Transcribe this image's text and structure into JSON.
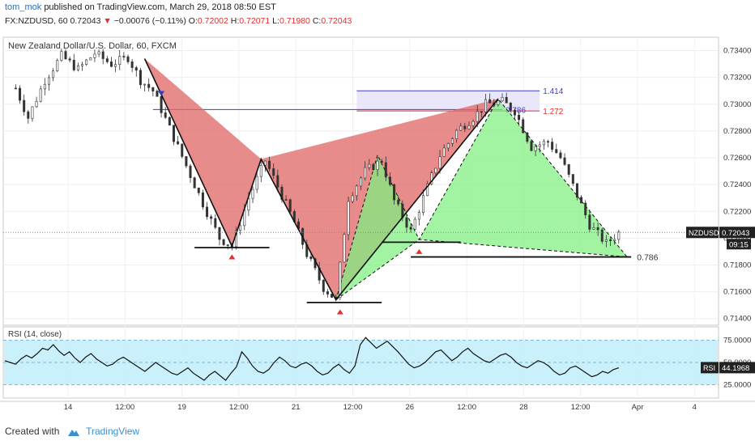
{
  "header": {
    "username": "tom_mok",
    "published": "published on TradingView.com, March 29, 2018 08:50 EST",
    "symbol_line": "FX:NZDUSD, 60",
    "last": "0.72043",
    "change": "−0.00076 (−0.11%)",
    "o_label": "O:",
    "o_val": "0.72002",
    "h_label": "H:",
    "h_val": "0.72071",
    "l_label": "L:",
    "l_val": "0.71980",
    "c_label": "C:",
    "c_val": "0.72043"
  },
  "footer": {
    "created": "Created with",
    "brand": "TradingView"
  },
  "colors": {
    "bear_pattern": "#e06a6a",
    "bull_pattern": "#7ef07e",
    "fib_box": "#e8e4fb",
    "fib_blue": "#3b3bd6",
    "fib_red": "#e03030",
    "rsi_band": "#bdeefa",
    "candle": "#333333"
  },
  "chart_data": [
    {
      "type": "candlestick",
      "title": "New Zealand Dollar/U.S. Dollar, 60, FXCM",
      "symbol_label": "NZDUSD",
      "last_price_label": "0.72043",
      "countdown_label": "09:15",
      "y_ticks": [
        "0.73400",
        "0.73200",
        "0.73000",
        "0.72800",
        "0.72600",
        "0.72400",
        "0.72200",
        "0.72000",
        "0.71800",
        "0.71600",
        "0.71400"
      ],
      "ylim": [
        0.7135,
        0.735
      ],
      "x_ticks": [
        "14",
        "12:00",
        "19",
        "12:00",
        "21",
        "12:00",
        "26",
        "12:00",
        "28",
        "12:00",
        "Apr",
        "4"
      ],
      "close_path": [
        {
          "t": 0,
          "v": 0.7312
        },
        {
          "t": 3,
          "v": 0.729
        },
        {
          "t": 7,
          "v": 0.7318
        },
        {
          "t": 11,
          "v": 0.7336
        },
        {
          "t": 15,
          "v": 0.7326
        },
        {
          "t": 19,
          "v": 0.7338
        },
        {
          "t": 23,
          "v": 0.733
        },
        {
          "t": 27,
          "v": 0.7335
        },
        {
          "t": 30,
          "v": 0.7318
        },
        {
          "t": 33,
          "v": 0.731
        },
        {
          "t": 37,
          "v": 0.7282
        },
        {
          "t": 41,
          "v": 0.7254
        },
        {
          "t": 45,
          "v": 0.7226
        },
        {
          "t": 49,
          "v": 0.72
        },
        {
          "t": 52,
          "v": 0.7194
        },
        {
          "t": 56,
          "v": 0.723
        },
        {
          "t": 60,
          "v": 0.7258
        },
        {
          "t": 64,
          "v": 0.7232
        },
        {
          "t": 67,
          "v": 0.7212
        },
        {
          "t": 70,
          "v": 0.7188
        },
        {
          "t": 74,
          "v": 0.7163
        },
        {
          "t": 77,
          "v": 0.7154
        },
        {
          "t": 80,
          "v": 0.723
        },
        {
          "t": 84,
          "v": 0.725
        },
        {
          "t": 88,
          "v": 0.7258
        },
        {
          "t": 91,
          "v": 0.7228
        },
        {
          "t": 95,
          "v": 0.7205
        },
        {
          "t": 98,
          "v": 0.723
        },
        {
          "t": 102,
          "v": 0.7262
        },
        {
          "t": 106,
          "v": 0.728
        },
        {
          "t": 110,
          "v": 0.729
        },
        {
          "t": 113,
          "v": 0.73
        },
        {
          "t": 117,
          "v": 0.7302
        },
        {
          "t": 120,
          "v": 0.7295
        },
        {
          "t": 124,
          "v": 0.7268
        },
        {
          "t": 128,
          "v": 0.7272
        },
        {
          "t": 131,
          "v": 0.726
        },
        {
          "t": 135,
          "v": 0.7232
        },
        {
          "t": 138,
          "v": 0.721
        },
        {
          "t": 142,
          "v": 0.7196
        },
        {
          "t": 145,
          "v": 0.7204
        }
      ],
      "harmonic_bearish": {
        "X": {
          "t": 31,
          "v": 0.7334
        },
        "A": {
          "t": 52,
          "v": 0.7194
        },
        "B": {
          "t": 59,
          "v": 0.7259
        },
        "C": {
          "t": 77,
          "v": 0.7154
        },
        "D": {
          "t": 116,
          "v": 0.7304
        }
      },
      "harmonic_bullish": {
        "X": {
          "t": 77,
          "v": 0.7154
        },
        "A": {
          "t": 87,
          "v": 0.7262
        },
        "B": {
          "t": 97,
          "v": 0.7199
        },
        "C": {
          "t": 116,
          "v": 0.7304
        },
        "D": {
          "t": 147,
          "v": 0.7186
        }
      },
      "fib_levels": [
        {
          "label": "1.414",
          "value": 0.731,
          "color": "#3b3bd6"
        },
        {
          "label": "0.786",
          "value": 0.7296,
          "color": "#3b3bd6"
        },
        {
          "label": "1.272",
          "value": 0.7295,
          "color": "#e03030"
        }
      ],
      "support_lines": [
        {
          "t0": 43,
          "t1": 61,
          "v": 0.7193
        },
        {
          "t0": 70,
          "t1": 88,
          "v": 0.7152
        },
        {
          "t0": 88,
          "t1": 107,
          "v": 0.7197
        },
        {
          "t0": 95,
          "t1": 148,
          "v": 0.7186,
          "label": "0.786"
        }
      ],
      "sell_marker": {
        "t": 35,
        "v": 0.7308
      },
      "buy_markers": [
        {
          "t": 52,
          "v": 0.7186
        },
        {
          "t": 78,
          "v": 0.7145
        },
        {
          "t": 97,
          "v": 0.719
        }
      ]
    },
    {
      "type": "line",
      "title": "RSI (14, close)",
      "label": "RSI",
      "value_label": "44.1968",
      "y_ticks": [
        "75.0000",
        "50.0000",
        "25.0000"
      ],
      "ylim": [
        10,
        90
      ],
      "band": [
        25,
        75
      ],
      "values": [
        52,
        50,
        48,
        54,
        58,
        55,
        60,
        66,
        64,
        70,
        63,
        58,
        62,
        55,
        50,
        56,
        60,
        54,
        50,
        46,
        48,
        53,
        56,
        52,
        48,
        44,
        40,
        45,
        50,
        46,
        42,
        38,
        36,
        40,
        44,
        38,
        34,
        30,
        36,
        40,
        35,
        30,
        38,
        45,
        62,
        55,
        46,
        40,
        38,
        42,
        50,
        56,
        52,
        46,
        44,
        48,
        50,
        46,
        40,
        36,
        38,
        44,
        48,
        42,
        38,
        46,
        70,
        78,
        72,
        66,
        70,
        74,
        68,
        62,
        55,
        48,
        44,
        46,
        50,
        56,
        62,
        64,
        58,
        52,
        56,
        62,
        66,
        60,
        56,
        52,
        50,
        54,
        58,
        60,
        56,
        50,
        46,
        44,
        48,
        52,
        50,
        46,
        40,
        36,
        38,
        44,
        46,
        42,
        38,
        34,
        36,
        40,
        38,
        42,
        44
      ]
    }
  ]
}
